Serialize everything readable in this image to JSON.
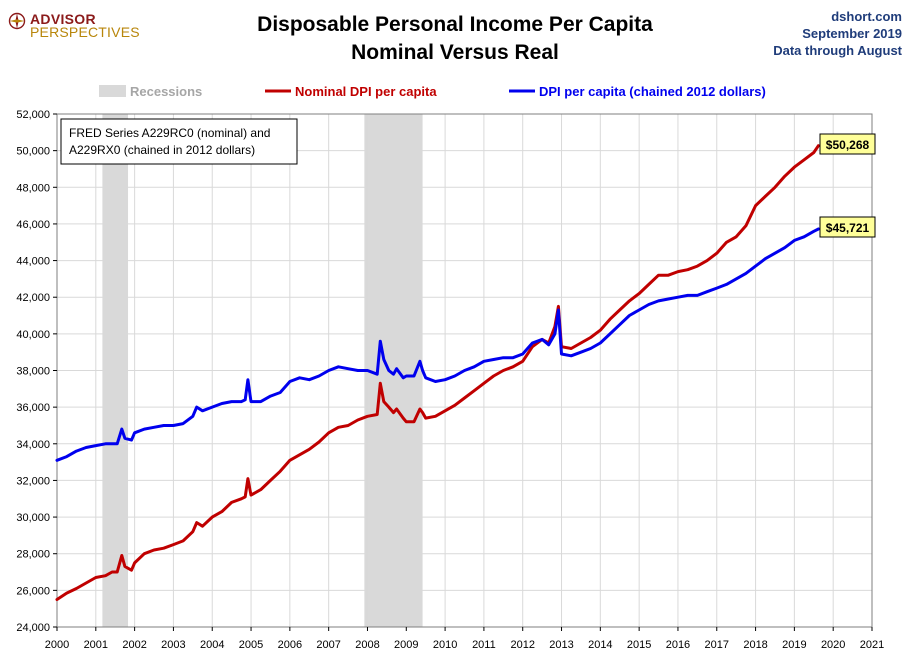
{
  "header": {
    "logo_line1": "ADVISOR",
    "logo_line2": "PERSPECTIVES",
    "title_line1": "Disposable Personal Income Per Capita",
    "title_line2": "Nominal Versus Real",
    "source_site": "dshort.com",
    "source_date": "September 2019",
    "source_note": "Data through August"
  },
  "colors": {
    "nominal": "#c00000",
    "real": "#0000ee",
    "recession": "#d9d9d9",
    "grid": "#d9d9d9",
    "label_box": "#ffff99"
  },
  "chart_data": {
    "type": "line",
    "title": "Disposable Personal Income Per Capita Nominal Versus Real",
    "xlim": [
      2000,
      2021
    ],
    "ylim": [
      24000,
      52000
    ],
    "x_ticks": [
      "2000",
      "2001",
      "2002",
      "2003",
      "2004",
      "2005",
      "2006",
      "2007",
      "2008",
      "2009",
      "2010",
      "2011",
      "2012",
      "2013",
      "2014",
      "2015",
      "2016",
      "2017",
      "2018",
      "2019",
      "2020",
      "2021"
    ],
    "y_ticks": [
      "24,000",
      "26,000",
      "28,000",
      "30,000",
      "32,000",
      "34,000",
      "36,000",
      "38,000",
      "40,000",
      "42,000",
      "44,000",
      "46,000",
      "48,000",
      "50,000",
      "52,000"
    ],
    "grid": true,
    "legend_position": "top",
    "legend": {
      "recessions": "Recessions",
      "nominal": "Nominal DPI per capita",
      "real": "DPI per capita (chained 2012 dollars)"
    },
    "annotation": {
      "line1": "FRED Series A229RC0 (nominal) and",
      "line2": "A229RX0 (chained in 2012 dollars)"
    },
    "recessions": [
      [
        2001.17,
        2001.83
      ],
      [
        2007.92,
        2009.42
      ]
    ],
    "end_labels": {
      "nominal": "$50,268",
      "real": "$45,721"
    },
    "series": [
      {
        "name": "Nominal DPI per capita",
        "key": "nominal",
        "points": [
          [
            2000.0,
            25500
          ],
          [
            2000.25,
            25850
          ],
          [
            2000.5,
            26100
          ],
          [
            2000.75,
            26400
          ],
          [
            2001.0,
            26700
          ],
          [
            2001.25,
            26800
          ],
          [
            2001.42,
            27000
          ],
          [
            2001.55,
            27000
          ],
          [
            2001.67,
            27900
          ],
          [
            2001.75,
            27300
          ],
          [
            2001.92,
            27100
          ],
          [
            2002.0,
            27500
          ],
          [
            2002.25,
            28000
          ],
          [
            2002.5,
            28200
          ],
          [
            2002.75,
            28300
          ],
          [
            2003.0,
            28500
          ],
          [
            2003.25,
            28700
          ],
          [
            2003.5,
            29200
          ],
          [
            2003.6,
            29700
          ],
          [
            2003.75,
            29500
          ],
          [
            2004.0,
            30000
          ],
          [
            2004.25,
            30300
          ],
          [
            2004.5,
            30800
          ],
          [
            2004.75,
            31000
          ],
          [
            2004.85,
            31100
          ],
          [
            2004.92,
            32100
          ],
          [
            2005.0,
            31200
          ],
          [
            2005.25,
            31500
          ],
          [
            2005.5,
            32000
          ],
          [
            2005.75,
            32500
          ],
          [
            2006.0,
            33100
          ],
          [
            2006.25,
            33400
          ],
          [
            2006.5,
            33700
          ],
          [
            2006.75,
            34100
          ],
          [
            2007.0,
            34600
          ],
          [
            2007.25,
            34900
          ],
          [
            2007.5,
            35000
          ],
          [
            2007.75,
            35300
          ],
          [
            2008.0,
            35500
          ],
          [
            2008.25,
            35600
          ],
          [
            2008.33,
            37300
          ],
          [
            2008.42,
            36300
          ],
          [
            2008.55,
            36000
          ],
          [
            2008.67,
            35700
          ],
          [
            2008.75,
            35900
          ],
          [
            2008.92,
            35400
          ],
          [
            2009.0,
            35200
          ],
          [
            2009.2,
            35200
          ],
          [
            2009.35,
            35900
          ],
          [
            2009.42,
            35700
          ],
          [
            2009.5,
            35400
          ],
          [
            2009.75,
            35500
          ],
          [
            2010.0,
            35800
          ],
          [
            2010.25,
            36100
          ],
          [
            2010.5,
            36500
          ],
          [
            2010.75,
            36900
          ],
          [
            2011.0,
            37300
          ],
          [
            2011.25,
            37700
          ],
          [
            2011.5,
            38000
          ],
          [
            2011.75,
            38200
          ],
          [
            2012.0,
            38500
          ],
          [
            2012.25,
            39300
          ],
          [
            2012.5,
            39700
          ],
          [
            2012.67,
            39500
          ],
          [
            2012.83,
            40400
          ],
          [
            2012.92,
            41500
          ],
          [
            2013.0,
            39300
          ],
          [
            2013.25,
            39200
          ],
          [
            2013.5,
            39500
          ],
          [
            2013.75,
            39800
          ],
          [
            2014.0,
            40200
          ],
          [
            2014.25,
            40800
          ],
          [
            2014.5,
            41300
          ],
          [
            2014.75,
            41800
          ],
          [
            2015.0,
            42200
          ],
          [
            2015.25,
            42700
          ],
          [
            2015.5,
            43200
          ],
          [
            2015.75,
            43200
          ],
          [
            2016.0,
            43400
          ],
          [
            2016.25,
            43500
          ],
          [
            2016.5,
            43700
          ],
          [
            2016.75,
            44000
          ],
          [
            2017.0,
            44400
          ],
          [
            2017.25,
            45000
          ],
          [
            2017.5,
            45300
          ],
          [
            2017.75,
            45900
          ],
          [
            2018.0,
            47000
          ],
          [
            2018.25,
            47500
          ],
          [
            2018.5,
            48000
          ],
          [
            2018.75,
            48600
          ],
          [
            2019.0,
            49100
          ],
          [
            2019.25,
            49500
          ],
          [
            2019.5,
            49900
          ],
          [
            2019.62,
            50268
          ]
        ]
      },
      {
        "name": "DPI per capita (chained 2012 dollars)",
        "key": "real",
        "points": [
          [
            2000.0,
            33100
          ],
          [
            2000.25,
            33300
          ],
          [
            2000.5,
            33600
          ],
          [
            2000.75,
            33800
          ],
          [
            2001.0,
            33900
          ],
          [
            2001.25,
            34000
          ],
          [
            2001.42,
            34000
          ],
          [
            2001.55,
            34000
          ],
          [
            2001.67,
            34800
          ],
          [
            2001.75,
            34300
          ],
          [
            2001.92,
            34200
          ],
          [
            2002.0,
            34600
          ],
          [
            2002.25,
            34800
          ],
          [
            2002.5,
            34900
          ],
          [
            2002.75,
            35000
          ],
          [
            2003.0,
            35000
          ],
          [
            2003.25,
            35100
          ],
          [
            2003.5,
            35500
          ],
          [
            2003.6,
            36000
          ],
          [
            2003.75,
            35800
          ],
          [
            2004.0,
            36000
          ],
          [
            2004.25,
            36200
          ],
          [
            2004.5,
            36300
          ],
          [
            2004.75,
            36300
          ],
          [
            2004.85,
            36400
          ],
          [
            2004.92,
            37500
          ],
          [
            2005.0,
            36300
          ],
          [
            2005.25,
            36300
          ],
          [
            2005.5,
            36600
          ],
          [
            2005.75,
            36800
          ],
          [
            2006.0,
            37400
          ],
          [
            2006.25,
            37600
          ],
          [
            2006.5,
            37500
          ],
          [
            2006.75,
            37700
          ],
          [
            2007.0,
            38000
          ],
          [
            2007.25,
            38200
          ],
          [
            2007.5,
            38100
          ],
          [
            2007.75,
            38000
          ],
          [
            2008.0,
            38000
          ],
          [
            2008.25,
            37800
          ],
          [
            2008.33,
            39600
          ],
          [
            2008.42,
            38600
          ],
          [
            2008.55,
            38000
          ],
          [
            2008.67,
            37800
          ],
          [
            2008.75,
            38100
          ],
          [
            2008.92,
            37600
          ],
          [
            2009.0,
            37700
          ],
          [
            2009.2,
            37700
          ],
          [
            2009.35,
            38500
          ],
          [
            2009.42,
            38000
          ],
          [
            2009.5,
            37600
          ],
          [
            2009.75,
            37400
          ],
          [
            2010.0,
            37500
          ],
          [
            2010.25,
            37700
          ],
          [
            2010.5,
            38000
          ],
          [
            2010.75,
            38200
          ],
          [
            2011.0,
            38500
          ],
          [
            2011.25,
            38600
          ],
          [
            2011.5,
            38700
          ],
          [
            2011.75,
            38700
          ],
          [
            2012.0,
            38900
          ],
          [
            2012.25,
            39500
          ],
          [
            2012.5,
            39700
          ],
          [
            2012.67,
            39400
          ],
          [
            2012.83,
            40000
          ],
          [
            2012.92,
            41300
          ],
          [
            2013.0,
            38900
          ],
          [
            2013.25,
            38800
          ],
          [
            2013.5,
            39000
          ],
          [
            2013.75,
            39200
          ],
          [
            2014.0,
            39500
          ],
          [
            2014.25,
            40000
          ],
          [
            2014.5,
            40500
          ],
          [
            2014.75,
            41000
          ],
          [
            2015.0,
            41300
          ],
          [
            2015.25,
            41600
          ],
          [
            2015.5,
            41800
          ],
          [
            2015.75,
            41900
          ],
          [
            2016.0,
            42000
          ],
          [
            2016.25,
            42100
          ],
          [
            2016.5,
            42100
          ],
          [
            2016.75,
            42300
          ],
          [
            2017.0,
            42500
          ],
          [
            2017.25,
            42700
          ],
          [
            2017.5,
            43000
          ],
          [
            2017.75,
            43300
          ],
          [
            2018.0,
            43700
          ],
          [
            2018.25,
            44100
          ],
          [
            2018.5,
            44400
          ],
          [
            2018.75,
            44700
          ],
          [
            2019.0,
            45100
          ],
          [
            2019.25,
            45300
          ],
          [
            2019.5,
            45600
          ],
          [
            2019.62,
            45721
          ]
        ]
      }
    ]
  }
}
